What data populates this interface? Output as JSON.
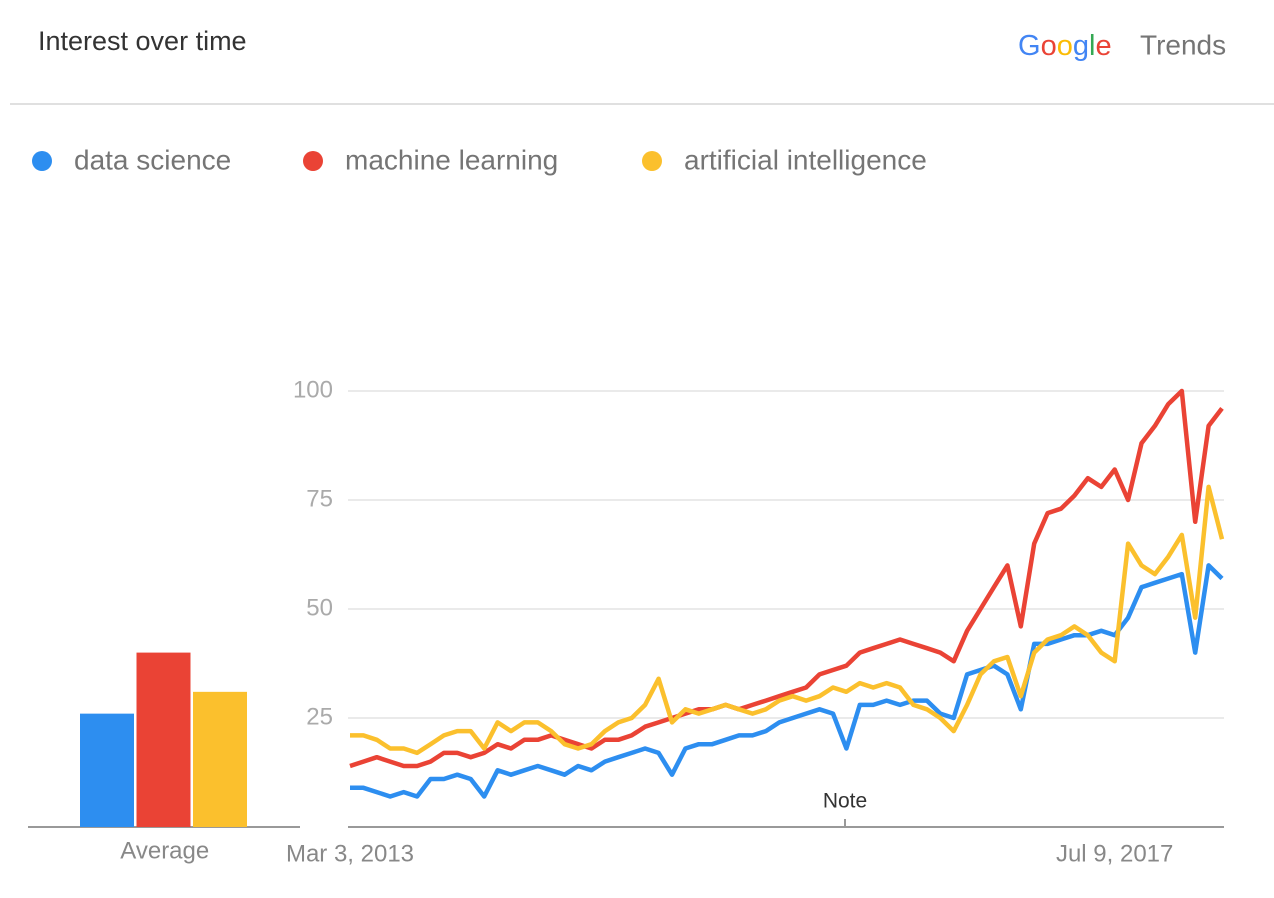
{
  "header": {
    "title": "Interest over time",
    "brand": "Google",
    "product": "Trends"
  },
  "chart_data": [
    {
      "type": "line",
      "categories": [
        "Mar 3, 2013",
        null,
        null,
        null,
        null,
        null,
        null,
        null,
        null,
        null,
        null,
        null,
        null,
        null,
        null,
        null,
        null,
        null,
        null,
        null,
        null,
        null,
        null,
        null,
        null,
        null,
        null,
        null,
        null,
        null,
        null,
        null,
        null,
        null,
        null,
        null,
        null,
        null,
        null,
        null,
        null,
        null,
        null,
        null,
        null,
        null,
        null,
        null,
        null,
        null,
        null,
        null,
        null,
        null,
        null,
        null,
        null,
        "Jul 9, 2017",
        null,
        null,
        null,
        null,
        null,
        null,
        null,
        null
      ],
      "series": [
        {
          "name": "data science",
          "color": "#2d8ef0",
          "values": [
            9,
            9,
            8,
            7,
            8,
            7,
            11,
            11,
            12,
            11,
            7,
            13,
            12,
            13,
            14,
            13,
            12,
            14,
            13,
            15,
            16,
            17,
            18,
            17,
            12,
            18,
            19,
            19,
            20,
            21,
            21,
            22,
            24,
            25,
            26,
            27,
            26,
            18,
            28,
            28,
            29,
            28,
            29,
            29,
            26,
            25,
            35,
            36,
            37,
            35,
            27,
            42,
            42,
            43,
            44,
            44,
            45,
            44,
            48,
            55,
            56,
            57,
            58,
            40,
            60,
            57
          ]
        },
        {
          "name": "machine learning",
          "color": "#ea4335",
          "values": [
            14,
            15,
            16,
            15,
            14,
            14,
            15,
            17,
            17,
            16,
            17,
            19,
            18,
            20,
            20,
            21,
            20,
            19,
            18,
            20,
            20,
            21,
            23,
            24,
            25,
            26,
            27,
            27,
            28,
            27,
            28,
            29,
            30,
            31,
            32,
            35,
            36,
            37,
            40,
            41,
            42,
            43,
            42,
            41,
            40,
            38,
            45,
            50,
            55,
            60,
            46,
            65,
            72,
            73,
            76,
            80,
            78,
            82,
            75,
            88,
            92,
            97,
            100,
            70,
            92,
            96
          ]
        },
        {
          "name": "artificial intelligence",
          "color": "#fbc02d",
          "values": [
            21,
            21,
            20,
            18,
            18,
            17,
            19,
            21,
            22,
            22,
            18,
            24,
            22,
            24,
            24,
            22,
            19,
            18,
            19,
            22,
            24,
            25,
            28,
            34,
            24,
            27,
            26,
            27,
            28,
            27,
            26,
            27,
            29,
            30,
            29,
            30,
            32,
            31,
            33,
            32,
            33,
            32,
            28,
            27,
            25,
            22,
            28,
            35,
            38,
            39,
            30,
            40,
            43,
            44,
            46,
            44,
            40,
            38,
            65,
            60,
            58,
            62,
            67,
            48,
            78,
            66
          ]
        }
      ],
      "ylim": [
        0,
        100
      ],
      "yticks": [
        25,
        50,
        75,
        100
      ],
      "grid": true
    },
    {
      "type": "bar",
      "xlabel": "Average",
      "values": [
        26,
        40,
        31
      ],
      "colors": [
        "#2d8ef0",
        "#ea4335",
        "#fbc02d"
      ],
      "ylim": [
        0,
        100
      ]
    }
  ]
}
